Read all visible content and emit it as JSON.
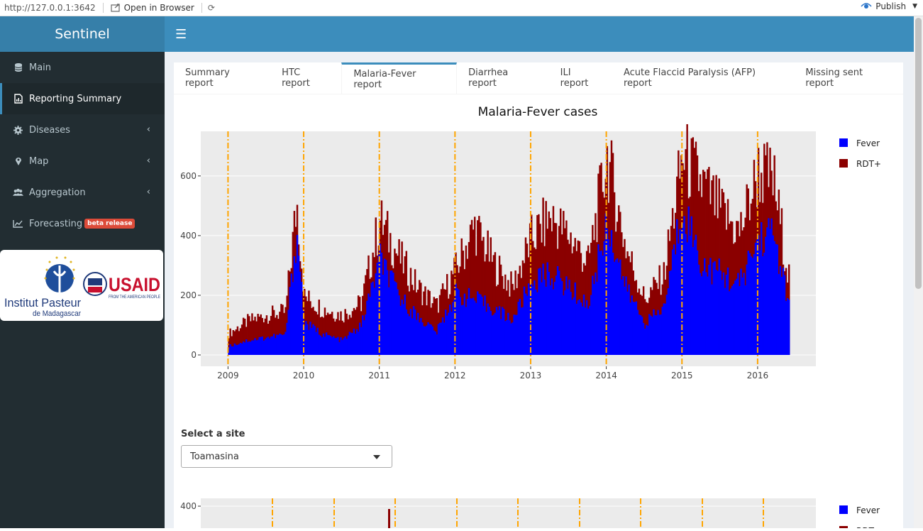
{
  "browser": {
    "url": "http://127.0.0.1:3642",
    "open_label": "Open in Browser",
    "publish_label": "Publish"
  },
  "app": {
    "title": "Sentinel"
  },
  "sidebar": {
    "items": [
      {
        "label": "Main",
        "icon": "database-icon"
      },
      {
        "label": "Reporting Summary",
        "icon": "report-icon"
      },
      {
        "label": "Diseases",
        "icon": "gear-icon"
      },
      {
        "label": "Map",
        "icon": "map-marker-icon"
      },
      {
        "label": "Aggregation",
        "icon": "users-icon"
      },
      {
        "label": "Forecasting",
        "icon": "line-chart-icon",
        "badge": "beta release"
      }
    ],
    "logos": {
      "pasteur_line1": "Institut Pasteur",
      "pasteur_line2": "de Madagascar",
      "usaid": "USAID",
      "usaid_sub": "FROM THE AMERICAN PEOPLE"
    }
  },
  "tabs": [
    {
      "label": "Summary report"
    },
    {
      "label": "HTC report"
    },
    {
      "label": "Malaria-Fever report"
    },
    {
      "label": "Diarrhea report"
    },
    {
      "label": "ILI report"
    },
    {
      "label": "Acute Flaccid Paralysis (AFP) report"
    },
    {
      "label": "Missing sent report"
    }
  ],
  "site_selector": {
    "label": "Select a site",
    "value": "Toamasina"
  },
  "colors": {
    "fever": "#0000ff",
    "rdt": "#8b0000",
    "year_line": "#ffa500",
    "plot_bg": "#ebebeb"
  },
  "chart_data": [
    {
      "type": "bar",
      "title": "Malaria-Fever cases",
      "x_ticks": [
        "2009",
        "2010",
        "2011",
        "2012",
        "2013",
        "2014",
        "2015",
        "2016"
      ],
      "y_ticks": [
        "0",
        "200",
        "400",
        "600"
      ],
      "ylim": [
        0,
        740
      ],
      "legend": [
        {
          "name": "Fever",
          "color": "#0000ff"
        },
        {
          "name": "RDT+",
          "color": "#8b0000"
        }
      ],
      "legend_position": "right",
      "series": [
        {
          "name": "Fever",
          "x": [
            2009.0,
            2009.25,
            2009.5,
            2009.75,
            2009.9,
            2010.0,
            2010.25,
            2010.5,
            2010.75,
            2011.0,
            2011.25,
            2011.5,
            2011.75,
            2012.0,
            2012.25,
            2012.5,
            2012.75,
            2013.0,
            2013.25,
            2013.5,
            2013.75,
            2014.0,
            2014.25,
            2014.5,
            2014.75,
            2015.0,
            2015.25,
            2015.5,
            2015.75,
            2016.0,
            2016.2,
            2016.4
          ],
          "values": [
            30,
            50,
            60,
            70,
            420,
            110,
            70,
            50,
            100,
            330,
            200,
            130,
            80,
            210,
            190,
            160,
            120,
            250,
            280,
            230,
            170,
            460,
            230,
            110,
            160,
            520,
            310,
            280,
            240,
            400,
            420,
            170
          ]
        },
        {
          "name": "RDT+",
          "x": [
            2009.0,
            2009.25,
            2009.5,
            2009.75,
            2009.9,
            2010.0,
            2010.25,
            2010.5,
            2010.75,
            2011.0,
            2011.25,
            2011.5,
            2011.75,
            2012.0,
            2012.25,
            2012.5,
            2012.75,
            2013.0,
            2013.25,
            2013.5,
            2013.75,
            2014.0,
            2014.25,
            2014.5,
            2014.75,
            2015.0,
            2015.25,
            2015.5,
            2015.75,
            2016.0,
            2016.2,
            2016.4
          ],
          "values": [
            70,
            110,
            130,
            140,
            500,
            190,
            150,
            130,
            170,
            440,
            320,
            220,
            160,
            280,
            420,
            300,
            220,
            380,
            450,
            390,
            300,
            650,
            350,
            180,
            260,
            650,
            560,
            470,
            400,
            600,
            570,
            260
          ]
        }
      ],
      "year_lines": [
        2009,
        2010,
        2011,
        2012,
        2013,
        2014,
        2015,
        2016
      ]
    },
    {
      "type": "bar",
      "y_ticks": [
        "400"
      ],
      "legend": [
        {
          "name": "Fever",
          "color": "#0000ff"
        },
        {
          "name": "RDT+",
          "color": "#8b0000"
        }
      ],
      "legend_position": "right"
    }
  ]
}
